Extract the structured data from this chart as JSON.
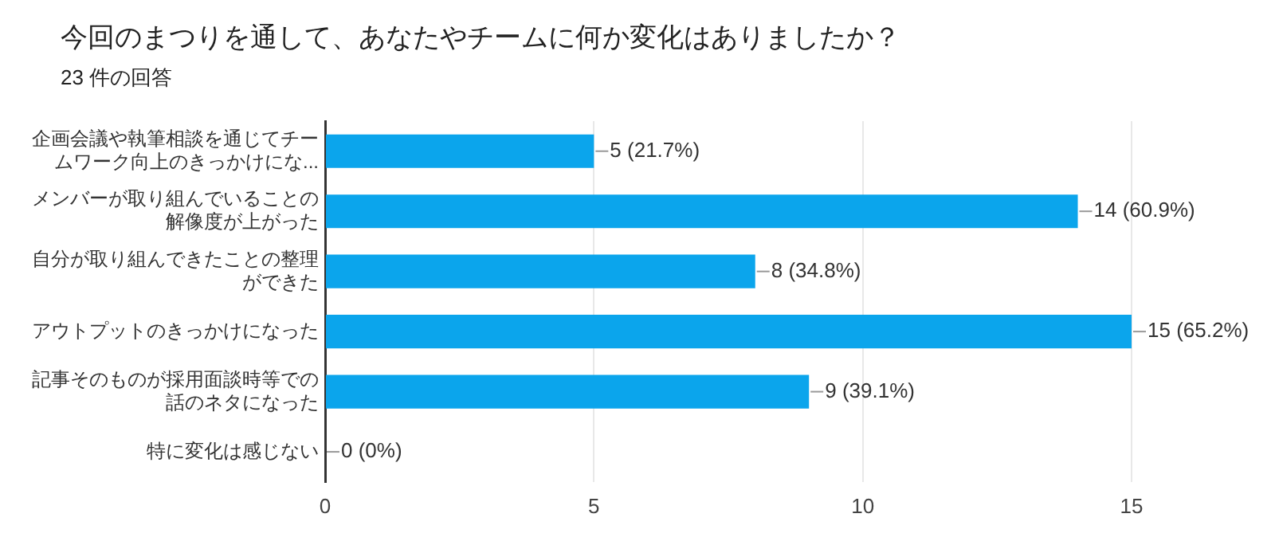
{
  "chart_data": {
    "type": "bar",
    "orientation": "horizontal",
    "title": "今回のまつりを通して、あなたやチームに何か変化はありましたか？",
    "subtitle": "23 件の回答",
    "categories": [
      "企画会議や執筆相談を通じてチームワーク向上のきっかけにな...",
      "メンバーが取り組んでいることの解像度が上がった",
      "自分が取り組んできたことの整理ができた",
      "アウトプットのきっかけになった",
      "記事そのものが採用面談時等での話のネタになった",
      "特に変化は感じない"
    ],
    "values": [
      5,
      14,
      8,
      15,
      9,
      0
    ],
    "value_labels": [
      "5 (21.7%)",
      "14 (60.9%)",
      "8 (34.8%)",
      "15 (65.2%)",
      "9 (39.1%)",
      "0 (0%)"
    ],
    "color": "#0ba5ec",
    "xlim": [
      0,
      15
    ],
    "xticks": [
      0,
      5,
      10,
      15
    ],
    "grid": "x",
    "legend": false
  }
}
